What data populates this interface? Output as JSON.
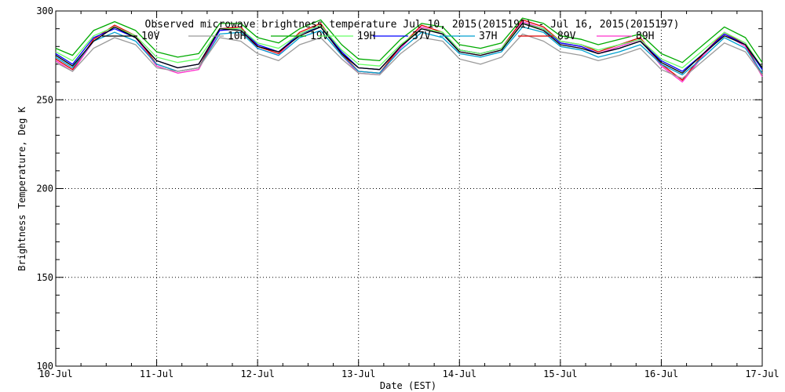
{
  "chart_data": {
    "type": "line",
    "title": "Observed microwave brightness temperature Jul 10, 2015(2015191) - Jul 16, 2015(2015197)",
    "xlabel": "Date (EST)",
    "ylabel": "Brightness Temperature, Deg K",
    "ylim": [
      100,
      300
    ],
    "yticks": [
      100,
      150,
      200,
      250,
      300
    ],
    "xlim": [
      "2015-07-10",
      "2015-07-17"
    ],
    "xticks": [
      "10-Jul",
      "11-Jul",
      "12-Jul",
      "13-Jul",
      "14-Jul",
      "15-Jul",
      "16-Jul",
      "17-Jul"
    ],
    "grid": true,
    "legend_position": "top",
    "series": [
      {
        "name": "10V",
        "color": "#000000",
        "x": [
          "2015-07-10T00:00",
          "2015-07-10T04:00",
          "2015-07-10T09:00",
          "2015-07-10T14:00",
          "2015-07-10T19:00",
          "2015-07-11T00:00",
          "2015-07-11T05:00",
          "2015-07-11T10:00",
          "2015-07-11T15:00",
          "2015-07-11T20:00",
          "2015-07-12T00:00",
          "2015-07-12T05:00",
          "2015-07-12T10:00",
          "2015-07-12T15:00",
          "2015-07-12T20:00",
          "2015-07-13T00:00",
          "2015-07-13T05:00",
          "2015-07-13T10:00",
          "2015-07-13T15:00",
          "2015-07-13T20:00",
          "2015-07-14T00:00",
          "2015-07-14T05:00",
          "2015-07-14T10:00",
          "2015-07-14T15:00",
          "2015-07-14T20:00",
          "2015-07-15T00:00",
          "2015-07-15T05:00",
          "2015-07-15T09:00",
          "2015-07-15T14:00",
          "2015-07-15T19:00",
          "2015-07-16T00:00",
          "2015-07-16T05:00",
          "2015-07-16T10:00",
          "2015-07-16T15:00",
          "2015-07-16T20:00",
          "2015-07-17T00:00"
        ],
        "values": [
          275,
          269,
          283,
          291,
          285,
          272,
          268,
          270,
          290,
          289,
          280,
          277,
          286,
          291,
          276,
          268,
          267,
          280,
          290,
          287,
          277,
          275,
          278,
          293,
          289,
          281,
          279,
          276,
          279,
          283,
          271,
          265,
          276,
          286,
          281,
          268
        ]
      },
      {
        "name": "10H",
        "color": "#9a9a9a",
        "x": [
          "2015-07-10T00:00",
          "2015-07-10T04:00",
          "2015-07-10T09:00",
          "2015-07-10T14:00",
          "2015-07-10T19:00",
          "2015-07-11T00:00",
          "2015-07-11T05:00",
          "2015-07-11T10:00",
          "2015-07-11T15:00",
          "2015-07-11T20:00",
          "2015-07-12T00:00",
          "2015-07-12T05:00",
          "2015-07-12T10:00",
          "2015-07-12T15:00",
          "2015-07-12T20:00",
          "2015-07-13T00:00",
          "2015-07-13T05:00",
          "2015-07-13T10:00",
          "2015-07-13T15:00",
          "2015-07-13T20:00",
          "2015-07-14T00:00",
          "2015-07-14T05:00",
          "2015-07-14T10:00",
          "2015-07-14T15:00",
          "2015-07-14T20:00",
          "2015-07-15T00:00",
          "2015-07-15T05:00",
          "2015-07-15T09:00",
          "2015-07-15T14:00",
          "2015-07-15T19:00",
          "2015-07-16T00:00",
          "2015-07-16T05:00",
          "2015-07-16T10:00",
          "2015-07-16T15:00",
          "2015-07-16T20:00",
          "2015-07-17T00:00"
        ],
        "values": [
          271,
          266,
          279,
          285,
          281,
          268,
          266,
          268,
          285,
          283,
          276,
          272,
          281,
          285,
          273,
          265,
          264,
          276,
          285,
          283,
          273,
          270,
          274,
          287,
          283,
          277,
          275,
          272,
          275,
          279,
          267,
          262,
          272,
          282,
          277,
          264
        ]
      },
      {
        "name": "19V",
        "color": "#00aa00",
        "x": [
          "2015-07-10T00:00",
          "2015-07-10T04:00",
          "2015-07-10T09:00",
          "2015-07-10T14:00",
          "2015-07-10T19:00",
          "2015-07-11T00:00",
          "2015-07-11T05:00",
          "2015-07-11T10:00",
          "2015-07-11T15:00",
          "2015-07-11T20:00",
          "2015-07-12T00:00",
          "2015-07-12T05:00",
          "2015-07-12T10:00",
          "2015-07-12T15:00",
          "2015-07-12T20:00",
          "2015-07-13T00:00",
          "2015-07-13T05:00",
          "2015-07-13T10:00",
          "2015-07-13T15:00",
          "2015-07-13T20:00",
          "2015-07-14T00:00",
          "2015-07-14T05:00",
          "2015-07-14T10:00",
          "2015-07-14T15:00",
          "2015-07-14T20:00",
          "2015-07-15T00:00",
          "2015-07-15T05:00",
          "2015-07-15T09:00",
          "2015-07-15T14:00",
          "2015-07-15T19:00",
          "2015-07-16T00:00",
          "2015-07-16T05:00",
          "2015-07-16T10:00",
          "2015-07-16T15:00",
          "2015-07-16T20:00",
          "2015-07-17T00:00"
        ],
        "values": [
          279,
          275,
          289,
          294,
          289,
          277,
          274,
          276,
          293,
          293,
          285,
          282,
          290,
          295,
          281,
          273,
          272,
          284,
          293,
          291,
          281,
          279,
          282,
          296,
          293,
          286,
          284,
          281,
          284,
          287,
          276,
          271,
          281,
          291,
          285,
          271
        ]
      },
      {
        "name": "19H",
        "color": "#66ff66",
        "x": [
          "2015-07-10T00:00",
          "2015-07-10T04:00",
          "2015-07-10T09:00",
          "2015-07-10T14:00",
          "2015-07-10T19:00",
          "2015-07-11T00:00",
          "2015-07-11T05:00",
          "2015-07-11T10:00",
          "2015-07-11T15:00",
          "2015-07-11T20:00",
          "2015-07-12T00:00",
          "2015-07-12T05:00",
          "2015-07-12T10:00",
          "2015-07-12T15:00",
          "2015-07-12T20:00",
          "2015-07-13T00:00",
          "2015-07-13T05:00",
          "2015-07-13T10:00",
          "2015-07-13T15:00",
          "2015-07-13T20:00",
          "2015-07-14T00:00",
          "2015-07-14T05:00",
          "2015-07-14T10:00",
          "2015-07-14T15:00",
          "2015-07-14T20:00",
          "2015-07-15T00:00",
          "2015-07-15T05:00",
          "2015-07-15T09:00",
          "2015-07-15T14:00",
          "2015-07-15T19:00",
          "2015-07-16T00:00",
          "2015-07-16T05:00",
          "2015-07-16T10:00",
          "2015-07-16T15:00",
          "2015-07-16T20:00",
          "2015-07-17T00:00"
        ],
        "values": [
          277,
          272,
          286,
          291,
          286,
          274,
          271,
          273,
          290,
          290,
          282,
          279,
          287,
          292,
          278,
          270,
          269,
          281,
          290,
          288,
          278,
          276,
          279,
          293,
          290,
          283,
          281,
          278,
          281,
          284,
          273,
          268,
          278,
          288,
          282,
          268
        ]
      },
      {
        "name": "37V",
        "color": "#0000ff",
        "x": [
          "2015-07-10T00:00",
          "2015-07-10T04:00",
          "2015-07-10T09:00",
          "2015-07-10T14:00",
          "2015-07-10T19:00",
          "2015-07-11T00:00",
          "2015-07-11T05:00",
          "2015-07-11T10:00",
          "2015-07-11T15:00",
          "2015-07-11T20:00",
          "2015-07-12T00:00",
          "2015-07-12T05:00",
          "2015-07-12T10:00",
          "2015-07-12T15:00",
          "2015-07-12T20:00",
          "2015-07-13T00:00",
          "2015-07-13T05:00",
          "2015-07-13T10:00",
          "2015-07-13T15:00",
          "2015-07-13T20:00",
          "2015-07-14T00:00",
          "2015-07-14T05:00",
          "2015-07-14T10:00",
          "2015-07-14T15:00",
          "2015-07-14T20:00",
          "2015-07-15T00:00",
          "2015-07-15T05:00",
          "2015-07-15T09:00",
          "2015-07-15T14:00",
          "2015-07-15T19:00",
          "2015-07-16T00:00",
          "2015-07-16T05:00",
          "2015-07-16T10:00",
          "2015-07-16T15:00",
          "2015-07-16T20:00",
          "2015-07-17T00:00"
        ],
        "values": [
          276,
          270,
          285,
          290,
          285,
          272,
          268,
          270,
          289,
          290,
          281,
          277,
          287,
          291,
          277,
          268,
          267,
          280,
          290,
          287,
          278,
          276,
          279,
          293,
          290,
          282,
          280,
          276,
          279,
          283,
          272,
          266,
          276,
          287,
          281,
          267
        ]
      },
      {
        "name": "37H",
        "color": "#00a0d0",
        "x": [
          "2015-07-10T00:00",
          "2015-07-10T04:00",
          "2015-07-10T09:00",
          "2015-07-10T14:00",
          "2015-07-10T19:00",
          "2015-07-11T00:00",
          "2015-07-11T05:00",
          "2015-07-11T10:00",
          "2015-07-11T15:00",
          "2015-07-11T20:00",
          "2015-07-12T00:00",
          "2015-07-12T05:00",
          "2015-07-12T10:00",
          "2015-07-12T15:00",
          "2015-07-12T20:00",
          "2015-07-13T00:00",
          "2015-07-13T05:00",
          "2015-07-13T10:00",
          "2015-07-13T15:00",
          "2015-07-13T20:00",
          "2015-07-14T00:00",
          "2015-07-14T05:00",
          "2015-07-14T10:00",
          "2015-07-14T15:00",
          "2015-07-14T20:00",
          "2015-07-15T00:00",
          "2015-07-15T05:00",
          "2015-07-15T09:00",
          "2015-07-15T14:00",
          "2015-07-15T19:00",
          "2015-07-16T00:00",
          "2015-07-16T05:00",
          "2015-07-16T10:00",
          "2015-07-16T15:00",
          "2015-07-16T20:00",
          "2015-07-17T00:00"
        ],
        "values": [
          274,
          268,
          283,
          288,
          283,
          270,
          266,
          268,
          287,
          288,
          279,
          275,
          285,
          289,
          275,
          266,
          265,
          278,
          288,
          285,
          276,
          274,
          277,
          291,
          288,
          280,
          278,
          274,
          277,
          281,
          270,
          264,
          274,
          285,
          279,
          265
        ]
      },
      {
        "name": "89V",
        "color": "#dd0000",
        "x": [
          "2015-07-10T00:00",
          "2015-07-10T04:00",
          "2015-07-10T09:00",
          "2015-07-10T14:00",
          "2015-07-10T19:00",
          "2015-07-11T00:00",
          "2015-07-11T05:00",
          "2015-07-11T10:00",
          "2015-07-11T15:00",
          "2015-07-11T20:00",
          "2015-07-12T00:00",
          "2015-07-12T05:00",
          "2015-07-12T10:00",
          "2015-07-12T15:00",
          "2015-07-12T20:00",
          "2015-07-13T00:00",
          "2015-07-13T05:00",
          "2015-07-13T10:00",
          "2015-07-13T15:00",
          "2015-07-13T20:00",
          "2015-07-14T00:00",
          "2015-07-14T05:00",
          "2015-07-14T10:00",
          "2015-07-14T15:00",
          "2015-07-14T20:00",
          "2015-07-15T00:00",
          "2015-07-15T05:00",
          "2015-07-15T09:00",
          "2015-07-15T14:00",
          "2015-07-15T19:00",
          "2015-07-16T00:00",
          "2015-07-16T05:00",
          "2015-07-16T10:00",
          "2015-07-16T15:00",
          "2015-07-16T20:00",
          "2015-07-17T00:00"
        ],
        "values": [
          273,
          267,
          284,
          292,
          286,
          270,
          266,
          268,
          290,
          291,
          280,
          276,
          288,
          293,
          276,
          266,
          265,
          280,
          292,
          288,
          278,
          276,
          279,
          295,
          291,
          283,
          281,
          277,
          281,
          285,
          270,
          261,
          276,
          288,
          281,
          264
        ]
      },
      {
        "name": "89H",
        "color": "#ff33cc",
        "x": [
          "2015-07-10T00:00",
          "2015-07-10T04:00",
          "2015-07-10T09:00",
          "2015-07-10T14:00",
          "2015-07-10T19:00",
          "2015-07-11T00:00",
          "2015-07-11T05:00",
          "2015-07-11T10:00",
          "2015-07-11T15:00",
          "2015-07-11T20:00",
          "2015-07-12T00:00",
          "2015-07-12T05:00",
          "2015-07-12T10:00",
          "2015-07-12T15:00",
          "2015-07-12T20:00",
          "2015-07-13T00:00",
          "2015-07-13T05:00",
          "2015-07-13T10:00",
          "2015-07-13T15:00",
          "2015-07-13T20:00",
          "2015-07-14T00:00",
          "2015-07-14T05:00",
          "2015-07-14T10:00",
          "2015-07-14T15:00",
          "2015-07-14T20:00",
          "2015-07-15T00:00",
          "2015-07-15T05:00",
          "2015-07-15T09:00",
          "2015-07-15T14:00",
          "2015-07-15T19:00",
          "2015-07-16T00:00",
          "2015-07-16T05:00",
          "2015-07-16T10:00",
          "2015-07-16T15:00",
          "2015-07-16T20:00",
          "2015-07-17T00:00"
        ],
        "values": [
          272,
          266,
          283,
          291,
          285,
          269,
          265,
          267,
          289,
          290,
          279,
          275,
          287,
          292,
          275,
          265,
          264,
          279,
          291,
          287,
          277,
          275,
          278,
          294,
          290,
          282,
          280,
          276,
          280,
          284,
          269,
          260,
          275,
          287,
          280,
          263
        ]
      }
    ]
  }
}
